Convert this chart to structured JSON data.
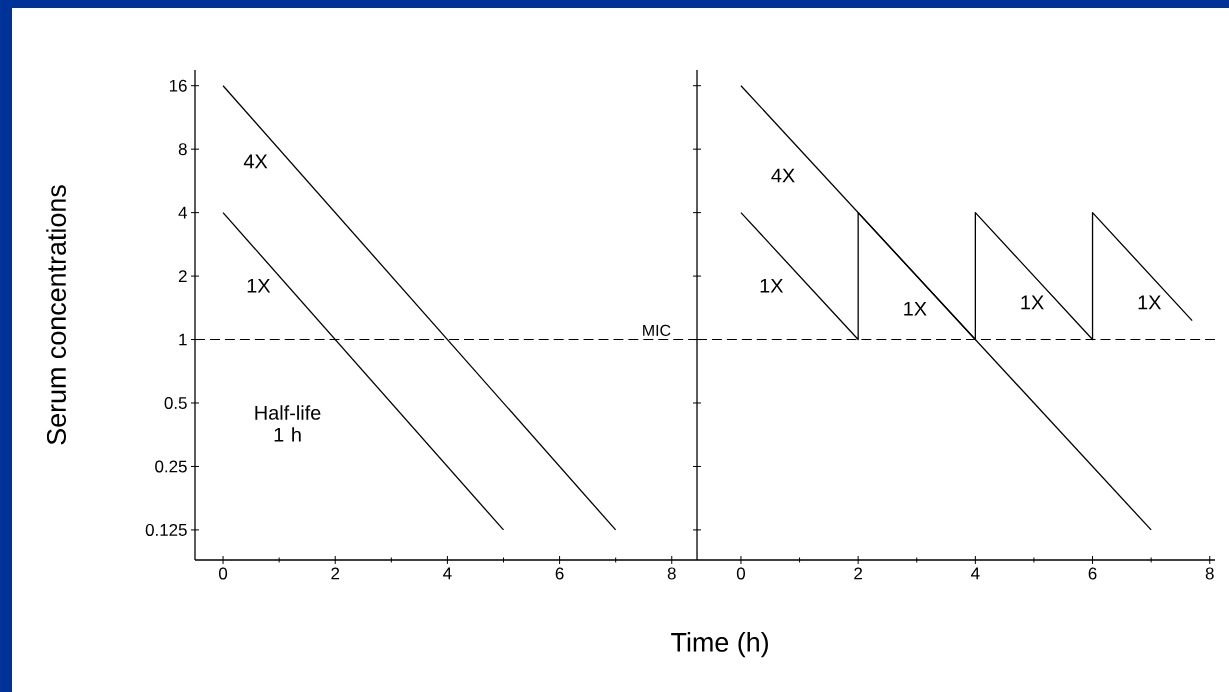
{
  "chart_data": [
    {
      "type": "line",
      "log": "y",
      "ylabel": "Serum concentrations",
      "xlabel": "Time (h)",
      "xlim": [
        -0.5,
        8.45
      ],
      "ylim": [
        0.09,
        19
      ],
      "xticks": [
        0,
        2,
        4,
        6,
        8
      ],
      "yticks": [
        0.125,
        0.25,
        0.5,
        1,
        2,
        4,
        8,
        16
      ],
      "series": [
        {
          "color": "#000000",
          "x": [
            0,
            7
          ],
          "values": [
            16,
            0.125
          ]
        },
        {
          "color": "#000000",
          "x": [
            0,
            5
          ],
          "values": [
            4,
            0.125
          ]
        }
      ],
      "ref_lines": [
        {
          "axis": "y",
          "value": 1,
          "label": "MIC",
          "line_style": "dashed"
        }
      ],
      "annotations": [
        "4X",
        "1X",
        "Half-life 1 h"
      ]
    },
    {
      "type": "line",
      "log": "y",
      "tick_labels": "x",
      "xlim": [
        -0.75,
        8.09
      ],
      "ylim": [
        0.09,
        19
      ],
      "xticks": [
        0,
        2,
        4,
        6,
        8
      ],
      "yticks": [
        0.125,
        0.25,
        0.5,
        1,
        2,
        4,
        8,
        16
      ],
      "series": [
        {
          "color": "#000000",
          "x": [
            0,
            7
          ],
          "values": [
            16,
            0.125
          ]
        },
        {
          "color": "#000000",
          "x": [
            0,
            2,
            2,
            4,
            4,
            6,
            6,
            7.7
          ],
          "values": [
            4,
            1,
            4,
            1,
            4,
            1,
            4,
            1.23
          ]
        }
      ],
      "ref_lines": [
        {
          "axis": "y",
          "value": 1,
          "line_style": "dashed"
        }
      ],
      "annotations": [
        "4X",
        "1X",
        "1X",
        "1X",
        "1X"
      ]
    }
  ]
}
